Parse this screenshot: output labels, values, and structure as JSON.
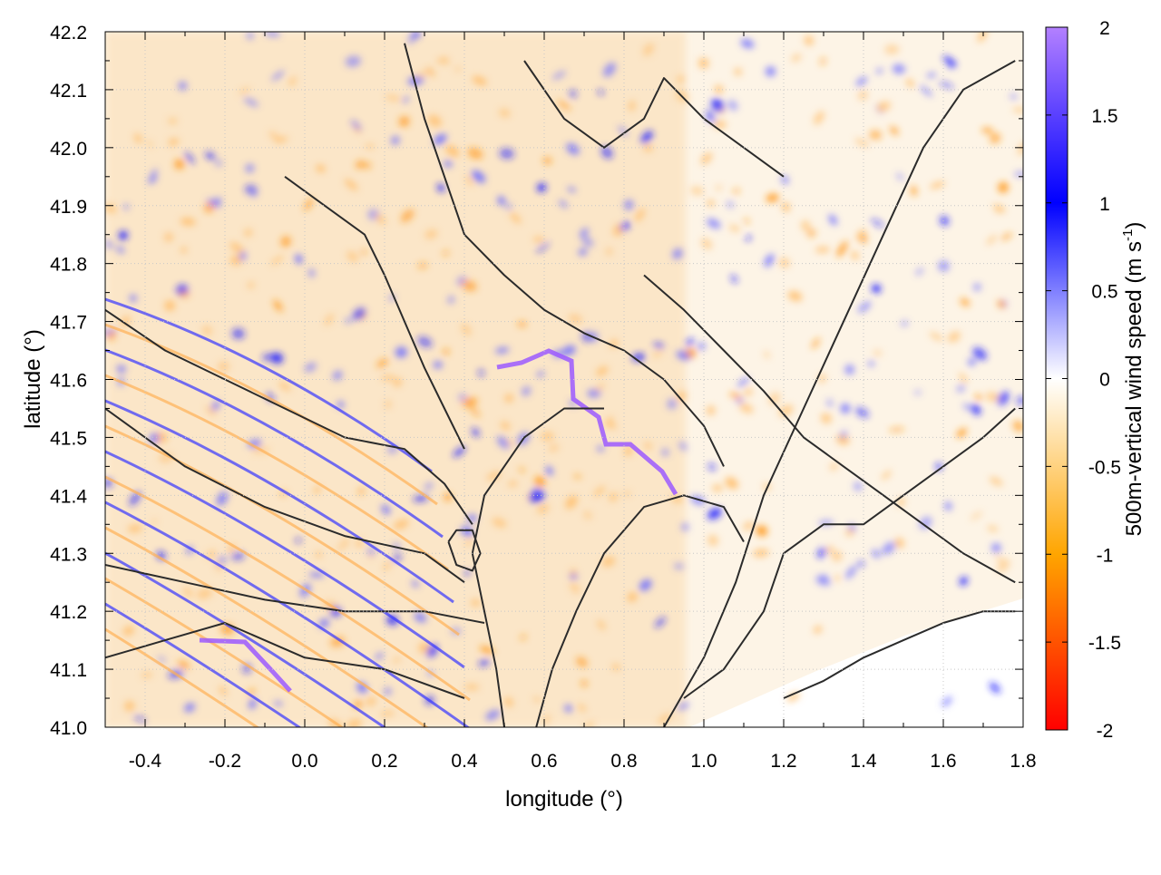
{
  "chart_data": {
    "type": "heatmap",
    "title": "",
    "xlabel": "longitude (°)",
    "ylabel": "latitude (°)",
    "xlim": [
      -0.5,
      1.8
    ],
    "ylim": [
      41.0,
      42.2
    ],
    "x_ticks": [
      "-0.4",
      "-0.2",
      "0.0",
      "0.2",
      "0.4",
      "0.6",
      "0.8",
      "1.0",
      "1.2",
      "1.4",
      "1.6",
      "1.8"
    ],
    "y_ticks": [
      "41.0",
      "41.1",
      "41.2",
      "41.3",
      "41.4",
      "41.5",
      "41.6",
      "41.7",
      "41.8",
      "41.9",
      "42.0",
      "42.1",
      "42.2"
    ],
    "grid": true,
    "colorbar": {
      "label": "500m-vertical wind speed (m s",
      "label_superscript": "-1",
      "label_suffix": ")",
      "range": [
        -2,
        2
      ],
      "ticks": [
        "2",
        "1.5",
        "1",
        "0.5",
        "0",
        "-0.5",
        "-1",
        "-1.5",
        "-2"
      ],
      "colors": [
        "#ff0000",
        "#ffa500",
        "#ffffff",
        "#0000ff",
        "#b380ff"
      ]
    },
    "field_description": "vertical wind speed at 500 m shaded (mostly weak ascent/descent, -0.5 to 0.5 m/s), with black terrain contours overlaid",
    "contours": [
      [
        [
          -0.5,
          41.72
        ],
        [
          -0.35,
          41.65
        ],
        [
          -0.2,
          41.6
        ],
        [
          -0.05,
          41.55
        ],
        [
          0.1,
          41.5
        ],
        [
          0.25,
          41.48
        ],
        [
          0.35,
          41.42
        ],
        [
          0.42,
          41.35
        ]
      ],
      [
        [
          -0.5,
          41.55
        ],
        [
          -0.3,
          41.45
        ],
        [
          -0.1,
          41.38
        ],
        [
          0.1,
          41.33
        ],
        [
          0.3,
          41.3
        ],
        [
          0.4,
          41.25
        ]
      ],
      [
        [
          -0.5,
          41.28
        ],
        [
          -0.3,
          41.25
        ],
        [
          -0.1,
          41.22
        ],
        [
          0.1,
          41.2
        ],
        [
          0.3,
          41.2
        ],
        [
          0.45,
          41.18
        ]
      ],
      [
        [
          -0.5,
          41.12
        ],
        [
          -0.35,
          41.15
        ],
        [
          -0.2,
          41.18
        ],
        [
          0.0,
          41.12
        ],
        [
          0.2,
          41.1
        ],
        [
          0.4,
          41.05
        ]
      ],
      [
        [
          0.25,
          42.18
        ],
        [
          0.3,
          42.05
        ],
        [
          0.35,
          41.95
        ],
        [
          0.4,
          41.85
        ],
        [
          0.5,
          41.78
        ],
        [
          0.6,
          41.72
        ],
        [
          0.7,
          41.68
        ],
        [
          0.8,
          41.65
        ],
        [
          0.9,
          41.6
        ],
        [
          1.0,
          41.52
        ],
        [
          1.05,
          41.45
        ]
      ],
      [
        [
          0.55,
          42.15
        ],
        [
          0.65,
          42.05
        ],
        [
          0.75,
          42.0
        ],
        [
          0.85,
          42.05
        ],
        [
          0.9,
          42.12
        ],
        [
          1.0,
          42.05
        ],
        [
          1.1,
          42.0
        ],
        [
          1.2,
          41.95
        ]
      ],
      [
        [
          0.85,
          41.78
        ],
        [
          0.95,
          41.72
        ],
        [
          1.05,
          41.65
        ],
        [
          1.15,
          41.58
        ],
        [
          1.25,
          41.5
        ],
        [
          1.35,
          41.45
        ],
        [
          1.45,
          41.4
        ],
        [
          1.55,
          41.35
        ],
        [
          1.65,
          41.3
        ],
        [
          1.78,
          41.25
        ]
      ],
      [
        [
          0.95,
          41.05
        ],
        [
          1.05,
          41.1
        ],
        [
          1.15,
          41.2
        ],
        [
          1.2,
          41.3
        ],
        [
          1.3,
          41.35
        ],
        [
          1.4,
          41.35
        ],
        [
          1.5,
          41.4
        ],
        [
          1.6,
          41.45
        ],
        [
          1.7,
          41.5
        ],
        [
          1.78,
          41.55
        ]
      ],
      [
        [
          1.2,
          41.05
        ],
        [
          1.3,
          41.08
        ],
        [
          1.4,
          41.12
        ],
        [
          1.5,
          41.15
        ],
        [
          1.6,
          41.18
        ],
        [
          1.7,
          41.2
        ],
        [
          1.78,
          41.2
        ]
      ],
      [
        [
          0.58,
          41.0
        ],
        [
          0.62,
          41.1
        ],
        [
          0.68,
          41.2
        ],
        [
          0.75,
          41.3
        ],
        [
          0.85,
          41.38
        ],
        [
          0.95,
          41.4
        ],
        [
          1.05,
          41.38
        ],
        [
          1.1,
          41.32
        ]
      ],
      [
        [
          0.5,
          41.0
        ],
        [
          0.48,
          41.1
        ],
        [
          0.45,
          41.2
        ],
        [
          0.42,
          41.3
        ],
        [
          0.45,
          41.4
        ],
        [
          0.55,
          41.5
        ],
        [
          0.65,
          41.55
        ],
        [
          0.75,
          41.55
        ]
      ],
      [
        [
          0.36,
          41.32
        ],
        [
          0.38,
          41.28
        ],
        [
          0.42,
          41.27
        ],
        [
          0.44,
          41.3
        ],
        [
          0.42,
          41.34
        ],
        [
          0.38,
          41.34
        ],
        [
          0.36,
          41.32
        ]
      ],
      [
        [
          -0.05,
          41.95
        ],
        [
          0.05,
          41.9
        ],
        [
          0.15,
          41.85
        ],
        [
          0.2,
          41.78
        ],
        [
          0.25,
          41.7
        ],
        [
          0.3,
          41.62
        ],
        [
          0.35,
          41.55
        ],
        [
          0.4,
          41.48
        ]
      ],
      [
        [
          0.9,
          41.0
        ],
        [
          1.0,
          41.12
        ],
        [
          1.08,
          41.25
        ],
        [
          1.15,
          41.4
        ],
        [
          1.25,
          41.55
        ],
        [
          1.35,
          41.7
        ],
        [
          1.45,
          41.85
        ],
        [
          1.55,
          42.0
        ],
        [
          1.65,
          42.1
        ],
        [
          1.78,
          42.15
        ]
      ]
    ]
  }
}
